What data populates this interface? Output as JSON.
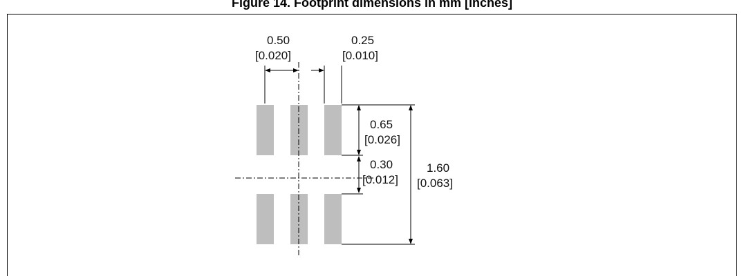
{
  "figure": {
    "caption": "Figure 14. Footprint dimensions in mm [inches]"
  },
  "dimensions": {
    "pad_pitch": {
      "mm": "0.50",
      "in": "[0.020]"
    },
    "pad_gap": {
      "mm": "0.25",
      "in": "[0.010]"
    },
    "pad_length": {
      "mm": "0.65",
      "in": "[0.026]"
    },
    "row_gap": {
      "mm": "0.30",
      "in": "[0.012]"
    },
    "total_length": {
      "mm": "1.60",
      "in": "[0.063]"
    }
  },
  "colors": {
    "pad": "#bebebe",
    "line": "#000000"
  }
}
